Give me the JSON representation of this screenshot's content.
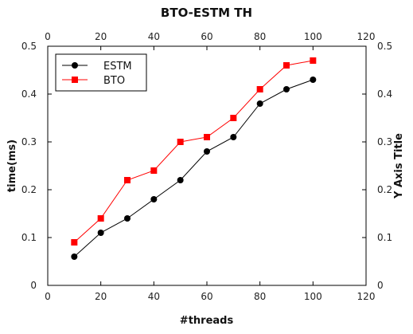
{
  "chart_data": {
    "type": "line",
    "title": "BTO-ESTM TH",
    "xlabel": "#threads",
    "ylabel": "time(ms)",
    "ylabel_right": "Y Axis Title",
    "xlim": [
      0,
      120
    ],
    "ylim": [
      0,
      0.5
    ],
    "xticks": [
      0,
      20,
      40,
      60,
      80,
      100,
      120
    ],
    "yticks": [
      0,
      0.1,
      0.2,
      0.3,
      0.4,
      0.5
    ],
    "xtick_labels": [
      "0",
      "20",
      "40",
      "60",
      "80",
      "100",
      "120"
    ],
    "ytick_labels": [
      "0",
      "0.1",
      "0.2",
      "0.3",
      "0.4",
      "0.5"
    ],
    "grid": false,
    "legend_position": "top-left",
    "x": [
      10,
      20,
      30,
      40,
      50,
      60,
      70,
      80,
      90,
      100
    ],
    "series": [
      {
        "name": "ESTM",
        "color": "#000000",
        "marker": "circle",
        "values": [
          0.06,
          0.11,
          0.14,
          0.18,
          0.22,
          0.28,
          0.31,
          0.38,
          0.41,
          0.43
        ]
      },
      {
        "name": "BTO",
        "color": "#ff0000",
        "marker": "square",
        "values": [
          0.09,
          0.14,
          0.22,
          0.24,
          0.3,
          0.31,
          0.35,
          0.41,
          0.46,
          0.47
        ]
      }
    ]
  }
}
